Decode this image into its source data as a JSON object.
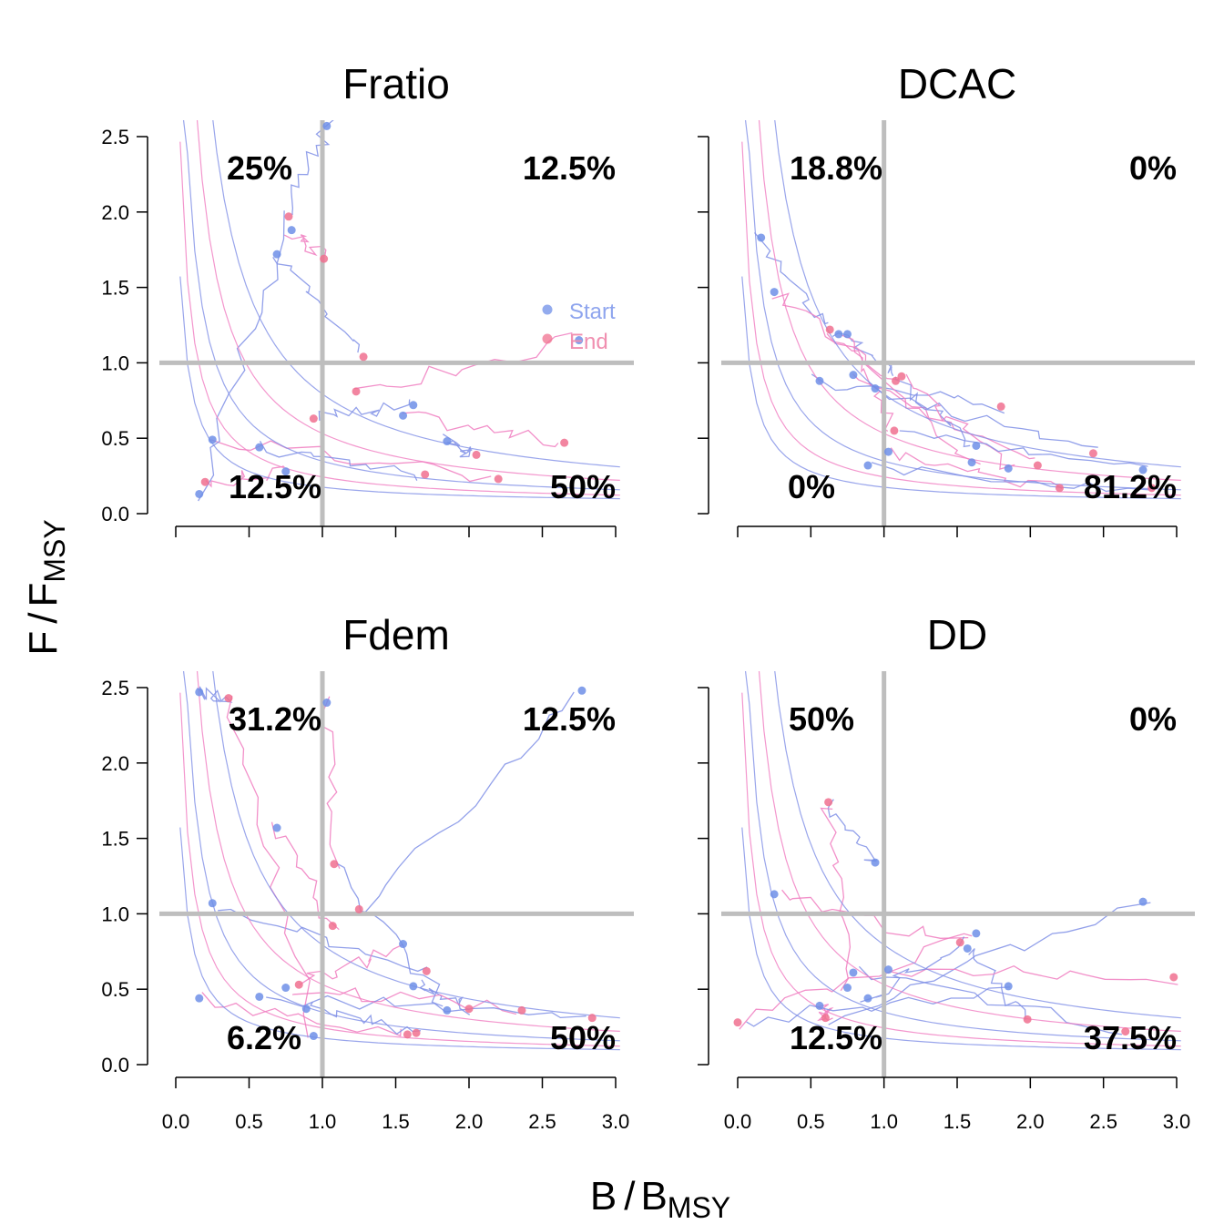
{
  "figure": {
    "xlabel_main": "B",
    "xlabel_ref": "B",
    "xlabel_sub": "MSY",
    "ylabel_main": "F",
    "ylabel_ref": "F",
    "ylabel_sub": "MSY"
  },
  "legend": {
    "start_label": "Start",
    "end_label": "End",
    "start_color": "#6f8fe8",
    "end_color": "#f0708f"
  },
  "colors": {
    "start_line": "#7f8fe6",
    "end_line": "#f07cc0",
    "reference_line": "#bebebe"
  },
  "chart_data": [
    {
      "type": "line",
      "title": "Fratio",
      "xlim": [
        0,
        3.0
      ],
      "ylim": [
        0,
        2.5
      ],
      "xticks": [
        "0.0",
        "0.5",
        "1.0",
        "1.5",
        "2.0",
        "2.5",
        "3.0"
      ],
      "yticks": [
        "0.0",
        "0.5",
        "1.0",
        "1.5",
        "2.0",
        "2.5"
      ],
      "reference_lines": {
        "x": 1.0,
        "y": 1.0
      },
      "quadrant_labels": {
        "top_left": "25%",
        "top_right": "12.5%",
        "bottom_left": "12.5%",
        "bottom_right": "50%"
      },
      "legend_position": "right",
      "start_points": [
        [
          1.03,
          2.57
        ],
        [
          0.79,
          1.88
        ],
        [
          0.69,
          1.72
        ],
        [
          2.75,
          1.15
        ],
        [
          1.62,
          0.72
        ],
        [
          1.55,
          0.65
        ],
        [
          1.85,
          0.48
        ],
        [
          0.25,
          0.49
        ],
        [
          0.57,
          0.44
        ],
        [
          0.75,
          0.28
        ],
        [
          0.16,
          0.13
        ]
      ],
      "end_points": [
        [
          0.77,
          1.97
        ],
        [
          1.01,
          1.69
        ],
        [
          1.28,
          1.04
        ],
        [
          1.23,
          0.81
        ],
        [
          0.94,
          0.63
        ],
        [
          2.65,
          0.47
        ],
        [
          2.05,
          0.39
        ],
        [
          2.2,
          0.23
        ],
        [
          1.7,
          0.26
        ],
        [
          0.2,
          0.21
        ]
      ]
    },
    {
      "type": "line",
      "title": "DCAC",
      "xlim": [
        0,
        3.0
      ],
      "ylim": [
        0,
        2.5
      ],
      "xticks": [
        "0.0",
        "0.5",
        "1.0",
        "1.5",
        "2.0",
        "2.5",
        "3.0"
      ],
      "yticks": [
        "0.0",
        "0.5",
        "1.0",
        "1.5",
        "2.0",
        "2.5"
      ],
      "reference_lines": {
        "x": 1.0,
        "y": 1.0
      },
      "quadrant_labels": {
        "top_left": "18.8%",
        "top_right": "0%",
        "bottom_left": "0%",
        "bottom_right": "81.2%"
      },
      "start_points": [
        [
          0.16,
          1.83
        ],
        [
          0.25,
          1.47
        ],
        [
          0.69,
          1.19
        ],
        [
          0.75,
          1.19
        ],
        [
          0.56,
          0.88
        ],
        [
          0.79,
          0.92
        ],
        [
          0.94,
          0.83
        ],
        [
          1.03,
          0.41
        ],
        [
          0.89,
          0.32
        ],
        [
          1.6,
          0.34
        ],
        [
          1.63,
          0.45
        ],
        [
          1.85,
          0.3
        ],
        [
          2.77,
          0.29
        ]
      ],
      "end_points": [
        [
          0.63,
          1.22
        ],
        [
          1.08,
          0.88
        ],
        [
          1.12,
          0.91
        ],
        [
          1.07,
          0.55
        ],
        [
          1.8,
          0.71
        ],
        [
          2.05,
          0.32
        ],
        [
          2.43,
          0.4
        ],
        [
          2.2,
          0.17
        ],
        [
          2.83,
          0.17
        ]
      ]
    },
    {
      "type": "line",
      "title": "Fdem",
      "xlim": [
        0,
        3.0
      ],
      "ylim": [
        0,
        2.5
      ],
      "xticks": [
        "0.0",
        "0.5",
        "1.0",
        "1.5",
        "2.0",
        "2.5",
        "3.0"
      ],
      "yticks": [
        "0.0",
        "0.5",
        "1.0",
        "1.5",
        "2.0",
        "2.5"
      ],
      "reference_lines": {
        "x": 1.0,
        "y": 1.0
      },
      "quadrant_labels": {
        "top_left": "31.2%",
        "top_right": "12.5%",
        "bottom_left": "6.2%",
        "bottom_right": "50%"
      },
      "start_points": [
        [
          0.16,
          2.47
        ],
        [
          1.03,
          2.4
        ],
        [
          2.77,
          2.48
        ],
        [
          0.69,
          1.57
        ],
        [
          0.25,
          1.07
        ],
        [
          1.55,
          0.8
        ],
        [
          1.62,
          0.52
        ],
        [
          0.75,
          0.51
        ],
        [
          0.57,
          0.45
        ],
        [
          0.16,
          0.44
        ],
        [
          0.89,
          0.37
        ],
        [
          0.94,
          0.19
        ],
        [
          1.85,
          0.36
        ]
      ],
      "end_points": [
        [
          0.36,
          2.43
        ],
        [
          1.08,
          1.33
        ],
        [
          1.25,
          1.03
        ],
        [
          1.07,
          0.92
        ],
        [
          1.71,
          0.62
        ],
        [
          0.84,
          0.53
        ],
        [
          2.0,
          0.37
        ],
        [
          2.36,
          0.36
        ],
        [
          2.84,
          0.31
        ],
        [
          1.58,
          0.2
        ],
        [
          1.64,
          0.21
        ]
      ]
    },
    {
      "type": "line",
      "title": "DD",
      "xlim": [
        0,
        3.0
      ],
      "ylim": [
        0,
        2.5
      ],
      "xticks": [
        "0.0",
        "0.5",
        "1.0",
        "1.5",
        "2.0",
        "2.5",
        "3.0"
      ],
      "yticks": [
        "0.0",
        "0.5",
        "1.0",
        "1.5",
        "2.0",
        "2.5"
      ],
      "reference_lines": {
        "x": 1.0,
        "y": 1.0
      },
      "quadrant_labels": {
        "top_left": "50%",
        "top_right": "0%",
        "bottom_left": "12.5%",
        "bottom_right": "37.5%"
      },
      "start_points": [
        [
          0.94,
          1.34
        ],
        [
          0.25,
          1.13
        ],
        [
          2.77,
          1.08
        ],
        [
          1.63,
          0.87
        ],
        [
          1.57,
          0.77
        ],
        [
          1.03,
          0.63
        ],
        [
          0.79,
          0.61
        ],
        [
          0.75,
          0.51
        ],
        [
          0.89,
          0.44
        ],
        [
          0.56,
          0.39
        ],
        [
          1.85,
          0.52
        ]
      ],
      "end_points": [
        [
          0.62,
          1.74
        ],
        [
          1.52,
          0.81
        ],
        [
          0.6,
          0.31
        ],
        [
          0.0,
          0.28
        ],
        [
          1.98,
          0.3
        ],
        [
          2.98,
          0.58
        ],
        [
          2.65,
          0.22
        ]
      ]
    }
  ]
}
